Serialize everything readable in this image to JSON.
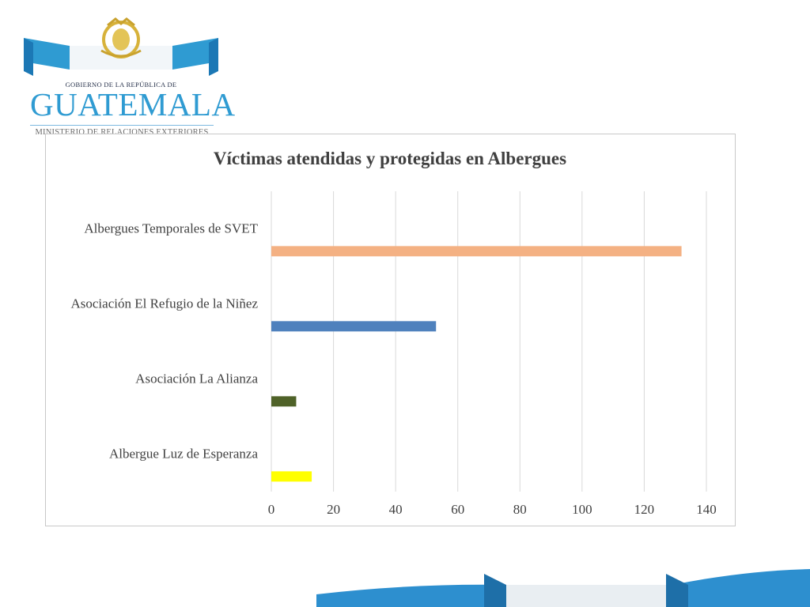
{
  "header": {
    "gov_line": "GOBIERNO DE LA REPÚBLICA DE",
    "country": "GUATEMALA",
    "ministry": "MINISTERIO DE RELACIONES EXTERIORES"
  },
  "colors": {
    "accent_blue": "#2f9bd2",
    "bar_svet": "#f4b183",
    "bar_refugio": "#4f81bd",
    "bar_alianza": "#4f6228",
    "bar_luz": "#ffff00"
  },
  "chart_data": {
    "type": "bar",
    "orientation": "horizontal",
    "title": "Víctimas atendidas y protegidas en Albergues",
    "categories": [
      "Albergues Temporales de SVET",
      "Asociación El Refugio de la Niñez",
      "Asociación La Alianza",
      "Albergue Luz de Esperanza"
    ],
    "values": [
      132,
      53,
      8,
      13
    ],
    "bar_colors": [
      "#f4b183",
      "#4f81bd",
      "#4f6228",
      "#ffff00"
    ],
    "xlim": [
      0,
      140
    ],
    "xticks": [
      "0",
      "20",
      "40",
      "60",
      "80",
      "100",
      "120",
      "140"
    ],
    "grid": true,
    "legend": "none"
  }
}
